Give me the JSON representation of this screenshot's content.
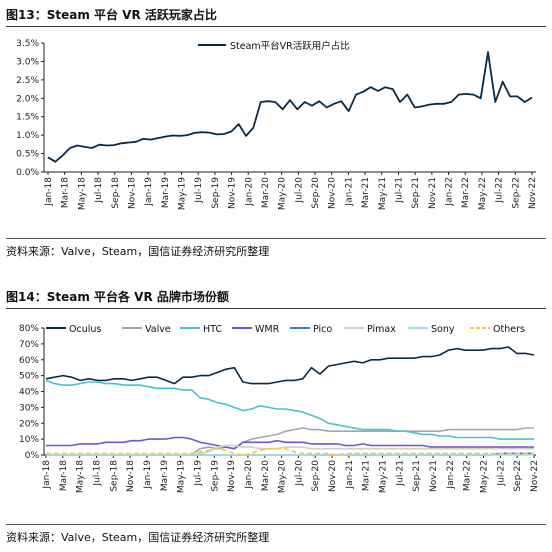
{
  "figure1": {
    "title": "图13：Steam 平台 VR 活跃玩家占比",
    "source": "资料来源：Valve，Steam，国信证券经济研究所整理"
  },
  "figure2": {
    "title": "图14：Steam 平台各 VR 品牌市场份额",
    "source": "资料来源：Valve，Steam，国信证券经济研究所整理"
  },
  "chart_data": [
    {
      "type": "line",
      "title": "",
      "xlabel": "",
      "ylabel": "",
      "x_tick_labels": [
        "Jan-18",
        "Mar-18",
        "May-18",
        "Jul-18",
        "Sep-18",
        "Nov-18",
        "Jan-19",
        "Mar-19",
        "May-19",
        "Jul-19",
        "Sep-19",
        "Nov-19",
        "Jan-20",
        "Mar-20",
        "May-20",
        "Jul-20",
        "Sep-20",
        "Nov-20",
        "Jan-21",
        "Mar-21",
        "May-21",
        "Jul-21",
        "Sep-21",
        "Nov-21",
        "Jan-22",
        "Mar-22",
        "May-22",
        "Jul-22",
        "Sep-22",
        "Nov-22"
      ],
      "ylim": [
        0,
        3.5
      ],
      "y_ticks": [
        "0.0%",
        "0.5%",
        "1.0%",
        "1.5%",
        "2.0%",
        "2.5%",
        "3.0%",
        "3.5%"
      ],
      "grid": false,
      "legend_position": "top-right",
      "series": [
        {
          "name": "Steam平台VR活跃用户占比",
          "color": "#0b2a45",
          "values": [
            0.4,
            0.28,
            0.45,
            0.65,
            0.72,
            0.68,
            0.65,
            0.74,
            0.72,
            0.73,
            0.78,
            0.8,
            0.82,
            0.9,
            0.88,
            0.92,
            0.96,
            0.99,
            0.98,
            1.0,
            1.06,
            1.08,
            1.07,
            1.02,
            1.03,
            1.1,
            1.3,
            0.98,
            1.2,
            1.9,
            1.92,
            1.9,
            1.7,
            1.95,
            1.7,
            1.9,
            1.8,
            1.92,
            1.75,
            1.85,
            1.92,
            1.65,
            2.1,
            2.18,
            2.3,
            2.2,
            2.3,
            2.25,
            1.9,
            2.1,
            1.75,
            1.78,
            1.83,
            1.85,
            1.85,
            1.9,
            2.1,
            2.12,
            2.1,
            2.0,
            3.25,
            1.9,
            2.45,
            2.05,
            2.05,
            1.9,
            2.02
          ]
        }
      ]
    },
    {
      "type": "line",
      "title": "",
      "xlabel": "",
      "ylabel": "",
      "x_tick_labels": [
        "Jan-18",
        "Mar-18",
        "May-18",
        "Jul-18",
        "Sep-18",
        "Nov-18",
        "Jan-19",
        "Mar-19",
        "May-19",
        "Jul-19",
        "Sep-19",
        "Nov-19",
        "Jan-20",
        "Mar-20",
        "May-20",
        "Jul-20",
        "Sep-20",
        "Nov-20",
        "Jan-21",
        "Mar-21",
        "May-21",
        "Jul-21",
        "Sep-21",
        "Nov-21",
        "Jan-22",
        "Mar-22",
        "May-22",
        "Jul-22",
        "Sep-22",
        "Nov-22"
      ],
      "ylim": [
        0,
        80
      ],
      "y_ticks": [
        "0%",
        "10%",
        "20%",
        "30%",
        "40%",
        "50%",
        "60%",
        "70%",
        "80%"
      ],
      "grid": false,
      "legend_position": "top",
      "series": [
        {
          "name": "Oculus",
          "color": "#0b2a45",
          "dash": "",
          "values": [
            48,
            49,
            50,
            49,
            47,
            48,
            47,
            47,
            48,
            48,
            47,
            48,
            49,
            49,
            47,
            45,
            49,
            49,
            50,
            50,
            52,
            54,
            55,
            46,
            45,
            45,
            45,
            46,
            47,
            47,
            48,
            55,
            51,
            56,
            57,
            58,
            59,
            58,
            60,
            60,
            61,
            61,
            61,
            61,
            62,
            62,
            63,
            66,
            67,
            66,
            66,
            66,
            67,
            67,
            68,
            64,
            64,
            63
          ]
        },
        {
          "name": "Valve",
          "color": "#9ba8b4",
          "dash": "",
          "values": [
            0,
            0,
            0,
            0,
            0,
            0,
            0,
            0,
            0,
            0,
            0,
            0,
            0,
            0,
            0,
            0,
            0,
            0,
            4,
            5,
            4,
            5,
            4,
            8,
            10,
            11,
            12,
            13,
            15,
            16,
            17,
            16,
            16,
            15,
            15,
            15,
            15,
            15,
            15,
            15,
            15,
            15,
            15,
            15,
            15,
            15,
            15,
            16,
            16,
            16,
            16,
            16,
            16,
            16,
            16,
            16,
            17,
            17
          ]
        },
        {
          "name": "HTC",
          "color": "#46c3c9",
          "dash": "",
          "values": [
            47,
            45,
            44,
            44,
            45,
            46,
            46,
            45,
            45,
            44,
            44,
            44,
            43,
            42,
            42,
            42,
            41,
            41,
            36,
            35,
            33,
            32,
            30,
            28,
            29,
            31,
            30,
            29,
            29,
            28,
            27,
            25,
            23,
            20,
            19,
            18,
            17,
            16,
            16,
            16,
            16,
            15,
            15,
            14,
            13,
            13,
            12,
            12,
            11,
            11,
            11,
            11,
            11,
            10,
            10,
            10,
            10,
            10
          ]
        },
        {
          "name": "WMR",
          "color": "#7b4fd6",
          "dash": "",
          "values": [
            6,
            6,
            6,
            6,
            7,
            7,
            7,
            8,
            8,
            8,
            9,
            9,
            10,
            10,
            10,
            11,
            11,
            10,
            8,
            7,
            6,
            5,
            4,
            8,
            8,
            8,
            8,
            9,
            8,
            8,
            8,
            7,
            7,
            7,
            7,
            6,
            6,
            7,
            6,
            6,
            6,
            6,
            6,
            6,
            6,
            5,
            5,
            5,
            5,
            5,
            5,
            5,
            5,
            5,
            5,
            5,
            5,
            5
          ]
        },
        {
          "name": "Pico",
          "color": "#2f86c7",
          "dash": "",
          "values": [
            0,
            0,
            0,
            0,
            0,
            0,
            0,
            0,
            0,
            0,
            0,
            0,
            0,
            0,
            0,
            0,
            0,
            0,
            0,
            0,
            0,
            0,
            0,
            0,
            0,
            0,
            0,
            0,
            0,
            0,
            0,
            0,
            0,
            0,
            0,
            0,
            0,
            0,
            0,
            0,
            0,
            0,
            0,
            0,
            0,
            0,
            0,
            0,
            0,
            0,
            0,
            0,
            0,
            1,
            1,
            1,
            1,
            1
          ]
        },
        {
          "name": "Pimax",
          "color": "#cfcfcf",
          "dash": "",
          "values": [
            0,
            0,
            0,
            0,
            0,
            0,
            0,
            0,
            0,
            0,
            0,
            0,
            0,
            0,
            0,
            0,
            0,
            0,
            1,
            2,
            5,
            6,
            6,
            5,
            5,
            4,
            4,
            4,
            5,
            5,
            5,
            4,
            4,
            4,
            4,
            4,
            4,
            4,
            4,
            4,
            4,
            4,
            4,
            4,
            4,
            4,
            4,
            4,
            4,
            4,
            4,
            4,
            4,
            4,
            4,
            4,
            4,
            4
          ]
        },
        {
          "name": "Sony",
          "color": "#a6dcef",
          "dash": "",
          "values": [
            0,
            0,
            0,
            0,
            0,
            0,
            0,
            0,
            0,
            0,
            0,
            0,
            0,
            0,
            0,
            0,
            0,
            0,
            0,
            0,
            0,
            0,
            0,
            0,
            0,
            0,
            0,
            0,
            0,
            0,
            0,
            0,
            0,
            0,
            0,
            0,
            0,
            0,
            0,
            0,
            0,
            0,
            0,
            0,
            0,
            0,
            0,
            0,
            0,
            0,
            0,
            0,
            0,
            0,
            0,
            0,
            0,
            0
          ]
        },
        {
          "name": "Others",
          "color": "#f2cf2e",
          "dash": "5,3",
          "values": [
            1,
            1,
            1,
            1,
            1,
            1,
            1,
            1,
            1,
            1,
            1,
            1,
            1,
            1,
            1,
            1,
            1,
            1,
            2,
            3,
            4,
            3,
            1,
            0,
            1,
            3,
            4,
            4,
            4,
            2,
            1,
            1,
            1,
            1,
            0,
            1,
            1,
            1,
            1,
            1,
            1,
            1,
            1,
            1,
            1,
            1,
            1,
            1,
            1,
            1,
            1,
            1,
            1,
            1,
            1,
            1,
            1,
            1
          ]
        }
      ]
    }
  ]
}
